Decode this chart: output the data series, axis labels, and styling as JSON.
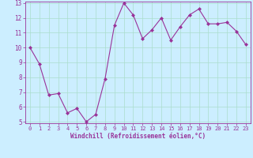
{
  "x": [
    0,
    1,
    2,
    3,
    4,
    5,
    6,
    7,
    8,
    9,
    10,
    11,
    12,
    13,
    14,
    15,
    16,
    17,
    18,
    19,
    20,
    21,
    22,
    23
  ],
  "y": [
    10.0,
    8.9,
    6.8,
    6.9,
    5.6,
    5.9,
    5.0,
    5.5,
    7.9,
    11.5,
    13.0,
    12.2,
    10.6,
    11.2,
    12.0,
    10.5,
    11.4,
    12.2,
    12.6,
    11.6,
    11.6,
    11.7,
    11.1,
    10.2
  ],
  "line_color": "#993399",
  "marker": "D",
  "marker_size": 2,
  "bg_color": "#cceeff",
  "grid_color": "#aaddcc",
  "xlabel": "Windchill (Refroidissement éolien,°C)",
  "ylim": [
    5,
    13
  ],
  "xlim": [
    -0.5,
    23.5
  ],
  "yticks": [
    5,
    6,
    7,
    8,
    9,
    10,
    11,
    12,
    13
  ],
  "xticks": [
    0,
    1,
    2,
    3,
    4,
    5,
    6,
    7,
    8,
    9,
    10,
    11,
    12,
    13,
    14,
    15,
    16,
    17,
    18,
    19,
    20,
    21,
    22,
    23
  ],
  "tick_color": "#993399",
  "label_color": "#993399",
  "spine_color": "#993399"
}
